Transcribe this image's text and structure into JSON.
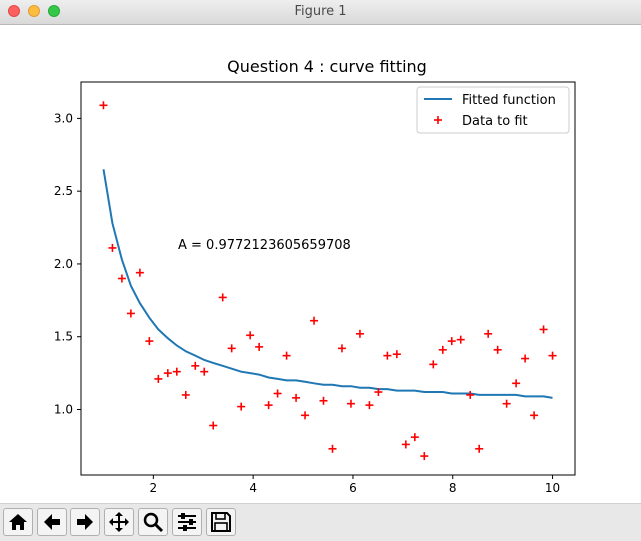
{
  "window": {
    "title": "Figure 1"
  },
  "toolbar": {
    "icons": [
      "home-icon",
      "back-icon",
      "forward-icon",
      "pan-icon",
      "zoom-icon",
      "configure-subplots-icon",
      "save-icon"
    ]
  },
  "chart_data": {
    "type": "line",
    "title": "Question 4 : curve fitting",
    "annotation": "A = 0.9772123605659708",
    "xlabel": "",
    "ylabel": "",
    "xlim": [
      0.55,
      10.45
    ],
    "ylim": [
      0.55,
      3.25
    ],
    "xticks": [
      2,
      4,
      6,
      8,
      10
    ],
    "xtick_labels": [
      "2",
      "4",
      "6",
      "8",
      "10"
    ],
    "yticks": [
      1.0,
      1.5,
      2.0,
      2.5,
      3.0
    ],
    "ytick_labels": [
      "1.0",
      "1.5",
      "2.0",
      "2.5",
      "3.0"
    ],
    "legend": {
      "placement": "upper-right",
      "entries": [
        "Fitted function",
        "Data to fit"
      ]
    },
    "line_color": "#1f77b4",
    "marker_color": "#ff0000",
    "series": [
      {
        "name": "Fitted function",
        "kind": "line",
        "x": [
          1.0,
          1.18,
          1.37,
          1.55,
          1.73,
          1.92,
          2.1,
          2.29,
          2.47,
          2.65,
          2.84,
          3.02,
          3.2,
          3.39,
          3.57,
          3.76,
          3.94,
          4.12,
          4.31,
          4.49,
          4.67,
          4.86,
          5.04,
          5.22,
          5.41,
          5.59,
          5.78,
          5.96,
          6.14,
          6.33,
          6.51,
          6.69,
          6.88,
          7.06,
          7.24,
          7.43,
          7.61,
          7.8,
          7.98,
          8.16,
          8.35,
          8.53,
          8.71,
          8.9,
          9.08,
          9.27,
          9.45,
          9.63,
          9.82,
          10.0
        ],
        "y": [
          2.65,
          2.28,
          2.03,
          1.85,
          1.73,
          1.63,
          1.55,
          1.49,
          1.44,
          1.4,
          1.37,
          1.34,
          1.32,
          1.3,
          1.28,
          1.26,
          1.25,
          1.24,
          1.22,
          1.21,
          1.2,
          1.2,
          1.19,
          1.18,
          1.17,
          1.17,
          1.16,
          1.16,
          1.15,
          1.15,
          1.14,
          1.14,
          1.13,
          1.13,
          1.13,
          1.12,
          1.12,
          1.12,
          1.11,
          1.11,
          1.11,
          1.1,
          1.1,
          1.1,
          1.1,
          1.1,
          1.09,
          1.09,
          1.09,
          1.08
        ]
      },
      {
        "name": "Data to fit",
        "kind": "scatter",
        "x": [
          1.0,
          1.18,
          1.37,
          1.55,
          1.73,
          1.92,
          2.1,
          2.29,
          2.47,
          2.65,
          2.84,
          3.02,
          3.2,
          3.39,
          3.57,
          3.76,
          3.94,
          4.12,
          4.31,
          4.49,
          4.67,
          4.86,
          5.04,
          5.22,
          5.41,
          5.59,
          5.78,
          5.96,
          6.14,
          6.33,
          6.51,
          6.69,
          6.88,
          7.06,
          7.24,
          7.43,
          7.61,
          7.8,
          7.98,
          8.16,
          8.35,
          8.53,
          8.71,
          8.9,
          9.08,
          9.27,
          9.45,
          9.63,
          9.82,
          10.0
        ],
        "y": [
          3.09,
          2.11,
          1.9,
          1.66,
          1.94,
          1.47,
          1.21,
          1.25,
          1.26,
          1.1,
          1.3,
          1.26,
          0.89,
          1.77,
          1.42,
          1.02,
          1.51,
          1.43,
          1.03,
          1.11,
          1.37,
          1.08,
          0.96,
          1.61,
          1.06,
          0.73,
          1.42,
          1.04,
          1.52,
          1.03,
          1.12,
          1.37,
          1.38,
          0.76,
          0.81,
          0.68,
          1.31,
          1.41,
          1.47,
          1.48,
          1.1,
          0.73,
          1.52,
          1.41,
          1.04,
          1.18,
          1.35,
          0.96,
          1.55,
          1.37
        ]
      }
    ]
  }
}
